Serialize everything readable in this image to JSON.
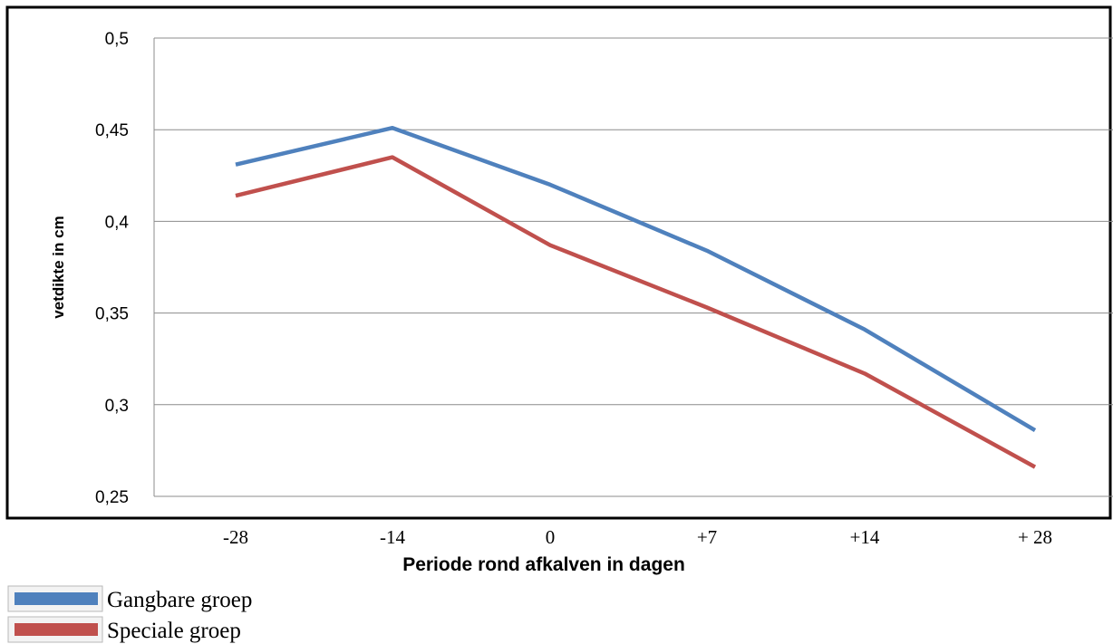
{
  "chart_data": {
    "type": "line",
    "title": "",
    "xlabel": "Periode rond afkalven in dagen",
    "ylabel": "vetdikte in cm",
    "categories": [
      "-28",
      "-14",
      "0",
      "+7",
      "+14",
      "+ 28"
    ],
    "y_ticks": [
      "0,25",
      "0,3",
      "0,35",
      "0,4",
      "0,45",
      "0,5"
    ],
    "ylim": [
      0.25,
      0.5
    ],
    "grid": true,
    "legend_position": "bottom-left",
    "series": [
      {
        "name": "Gangbare groep",
        "color": "#4f81bd",
        "values": [
          0.431,
          0.451,
          0.42,
          0.384,
          0.341,
          0.286
        ]
      },
      {
        "name": "Speciale groep",
        "color": "#c0504d",
        "values": [
          0.414,
          0.435,
          0.387,
          0.353,
          0.317,
          0.266
        ]
      }
    ]
  }
}
